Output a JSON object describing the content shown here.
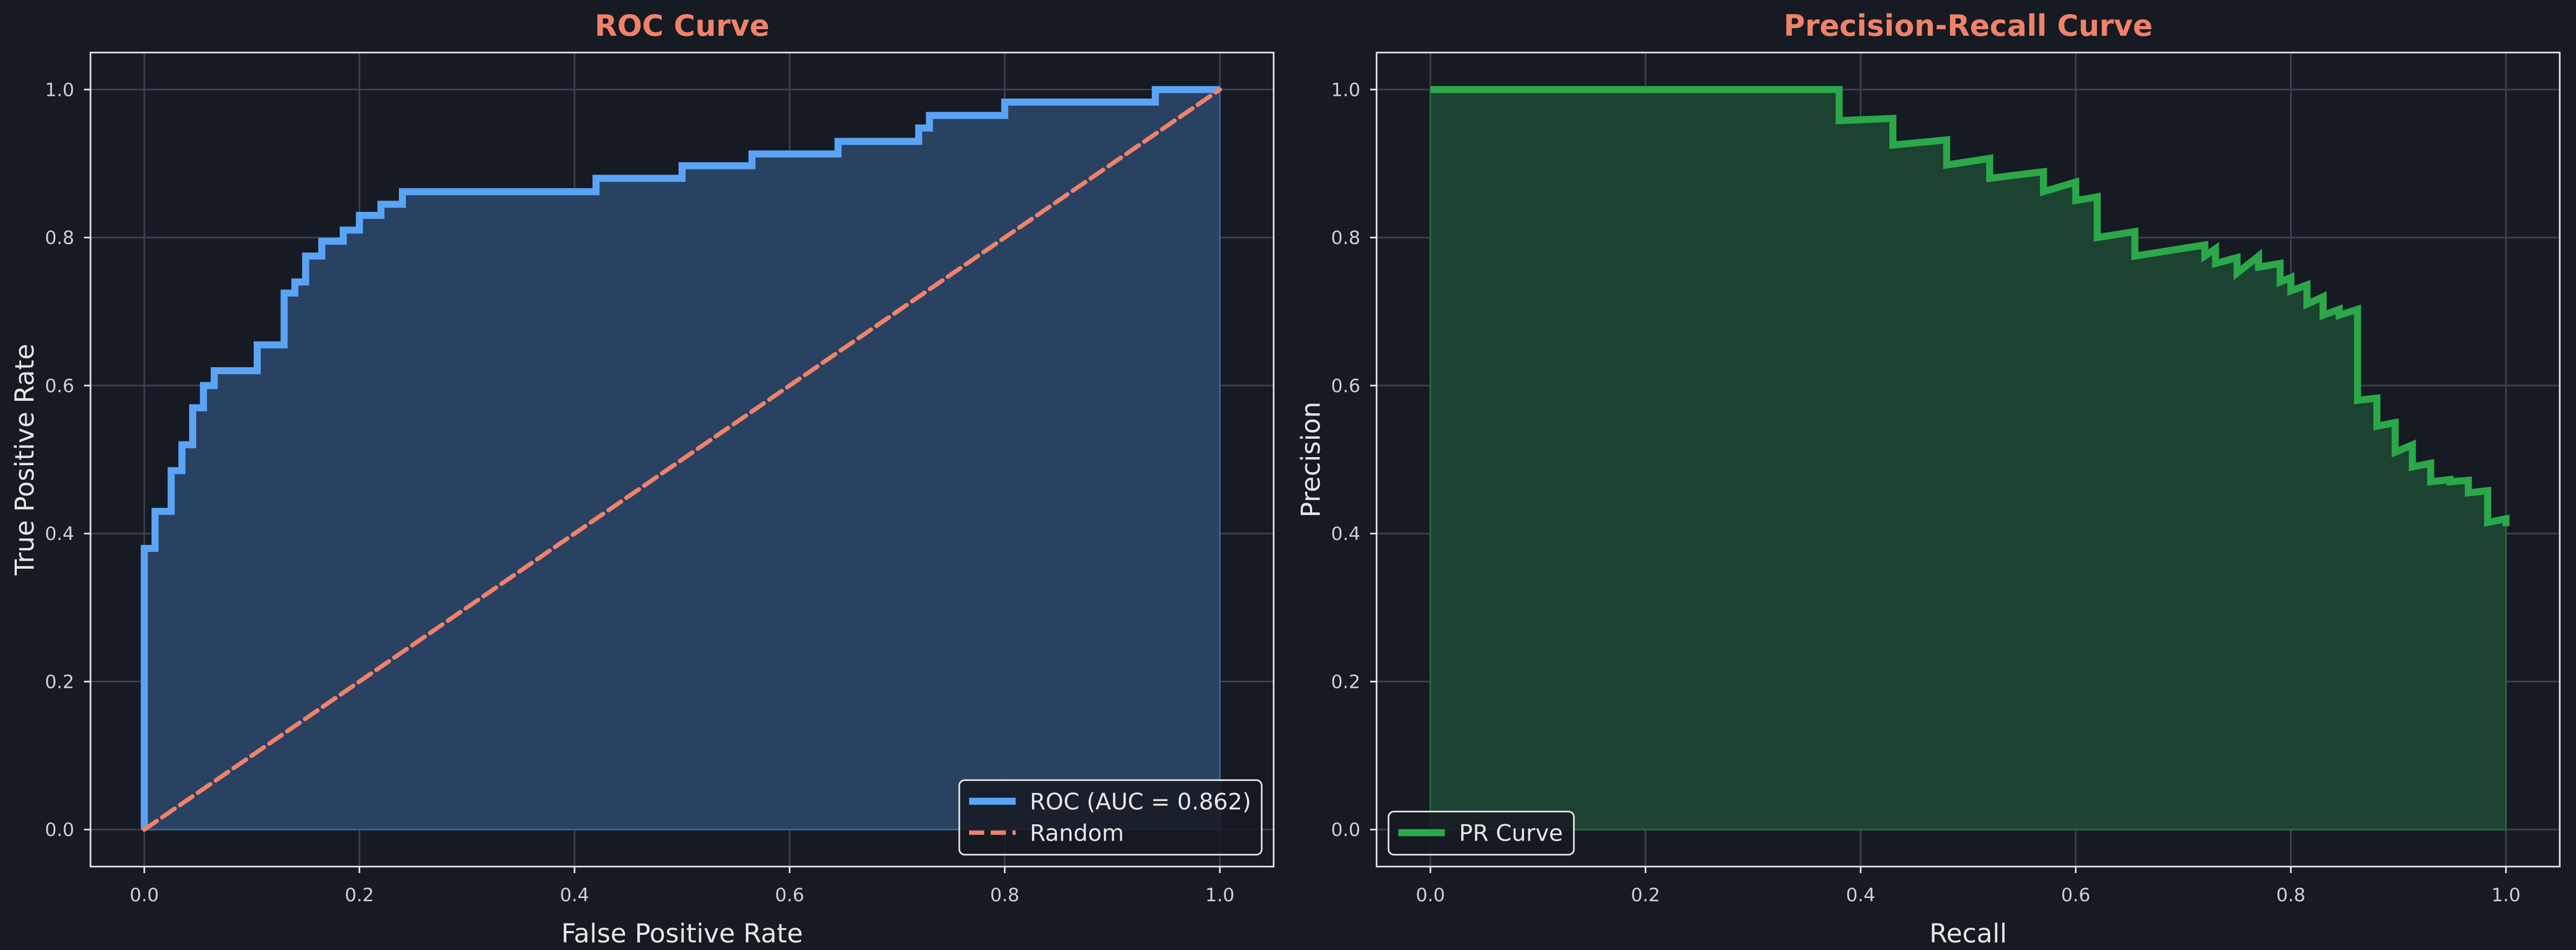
{
  "colors": {
    "background": "#161a22",
    "panel_border": "#e6e6e6",
    "grid": "#3a4150",
    "title": "#f0826a",
    "text": "#e6e6e6",
    "tick_text": "#d0d0d0",
    "roc_line": "#5aa4f5",
    "roc_fill": "#2a4466",
    "random_line": "#f0826a",
    "pr_line": "#2aa84a",
    "pr_fill": "#1c4533"
  },
  "chart_data": [
    {
      "type": "line",
      "title": "ROC Curve",
      "xlabel": "False Positive Rate",
      "ylabel": "True Positive Rate",
      "xlim": [
        -0.05,
        1.05
      ],
      "ylim": [
        -0.05,
        1.05
      ],
      "xticks": [
        0.0,
        0.2,
        0.4,
        0.6,
        0.8,
        1.0
      ],
      "yticks": [
        0.0,
        0.2,
        0.4,
        0.6,
        0.8,
        1.0
      ],
      "tick_labels_x": [
        "0.0",
        "0.2",
        "0.4",
        "0.6",
        "0.8",
        "1.0"
      ],
      "tick_labels_y": [
        "0.0",
        "0.2",
        "0.4",
        "0.6",
        "0.8",
        "1.0"
      ],
      "grid": true,
      "legend_position": "bottom-right",
      "series": [
        {
          "name": "ROC (AUC = 0.862)",
          "style": "solid",
          "fill": true,
          "x": [
            0,
            0,
            0.01,
            0.01,
            0.025,
            0.025,
            0.035,
            0.035,
            0.045,
            0.045,
            0.055,
            0.055,
            0.065,
            0.065,
            0.075,
            0.075,
            0.105,
            0.105,
            0.13,
            0.13,
            0.14,
            0.14,
            0.15,
            0.15,
            0.165,
            0.165,
            0.185,
            0.185,
            0.2,
            0.2,
            0.22,
            0.22,
            0.24,
            0.24,
            0.42,
            0.42,
            0.5,
            0.5,
            0.565,
            0.565,
            0.645,
            0.645,
            0.72,
            0.72,
            0.73,
            0.73,
            0.79,
            0.79,
            0.8,
            0.8,
            0.94,
            0.94,
            1.0
          ],
          "y": [
            0,
            0.38,
            0.38,
            0.43,
            0.43,
            0.485,
            0.485,
            0.52,
            0.52,
            0.57,
            0.57,
            0.6,
            0.6,
            0.62,
            0.62,
            0.62,
            0.62,
            0.655,
            0.655,
            0.725,
            0.725,
            0.74,
            0.74,
            0.775,
            0.775,
            0.795,
            0.795,
            0.81,
            0.81,
            0.83,
            0.83,
            0.845,
            0.845,
            0.862,
            0.862,
            0.88,
            0.88,
            0.897,
            0.897,
            0.913,
            0.913,
            0.93,
            0.93,
            0.948,
            0.948,
            0.965,
            0.965,
            0.965,
            0.965,
            0.983,
            0.983,
            1.0,
            1.0
          ]
        },
        {
          "name": "Random",
          "style": "dashed",
          "fill": false,
          "x": [
            0,
            1
          ],
          "y": [
            0,
            1
          ]
        }
      ]
    },
    {
      "type": "line",
      "title": "Precision-Recall Curve",
      "xlabel": "Recall",
      "ylabel": "Precision",
      "xlim": [
        -0.05,
        1.05
      ],
      "ylim": [
        -0.05,
        1.05
      ],
      "xticks": [
        0.0,
        0.2,
        0.4,
        0.6,
        0.8,
        1.0
      ],
      "yticks": [
        0.0,
        0.2,
        0.4,
        0.6,
        0.8,
        1.0
      ],
      "tick_labels_x": [
        "0.0",
        "0.2",
        "0.4",
        "0.6",
        "0.8",
        "1.0"
      ],
      "tick_labels_y": [
        "0.0",
        "0.2",
        "0.4",
        "0.6",
        "0.8",
        "1.0"
      ],
      "grid": true,
      "legend_position": "bottom-left",
      "series": [
        {
          "name": "PR Curve",
          "style": "solid",
          "fill": true,
          "x": [
            0,
            0.38,
            0.38,
            0.43,
            0.43,
            0.48,
            0.48,
            0.52,
            0.52,
            0.57,
            0.57,
            0.6,
            0.6,
            0.62,
            0.62,
            0.655,
            0.655,
            0.72,
            0.72,
            0.73,
            0.73,
            0.75,
            0.75,
            0.77,
            0.77,
            0.79,
            0.79,
            0.8,
            0.8,
            0.815,
            0.815,
            0.83,
            0.83,
            0.845,
            0.845,
            0.862,
            0.862,
            0.88,
            0.88,
            0.897,
            0.897,
            0.913,
            0.913,
            0.93,
            0.93,
            0.948,
            0.948,
            0.965,
            0.965,
            0.983,
            0.983,
            1.0,
            1.0
          ],
          "y": [
            1.0,
            1.0,
            0.958,
            0.961,
            0.925,
            0.932,
            0.898,
            0.907,
            0.88,
            0.889,
            0.862,
            0.875,
            0.85,
            0.855,
            0.8,
            0.808,
            0.775,
            0.79,
            0.775,
            0.785,
            0.765,
            0.773,
            0.752,
            0.775,
            0.76,
            0.765,
            0.74,
            0.746,
            0.728,
            0.736,
            0.71,
            0.72,
            0.695,
            0.703,
            0.695,
            0.703,
            0.58,
            0.583,
            0.545,
            0.55,
            0.51,
            0.52,
            0.49,
            0.495,
            0.47,
            0.473,
            0.47,
            0.472,
            0.455,
            0.458,
            0.415,
            0.42,
            0.41
          ]
        }
      ]
    }
  ]
}
